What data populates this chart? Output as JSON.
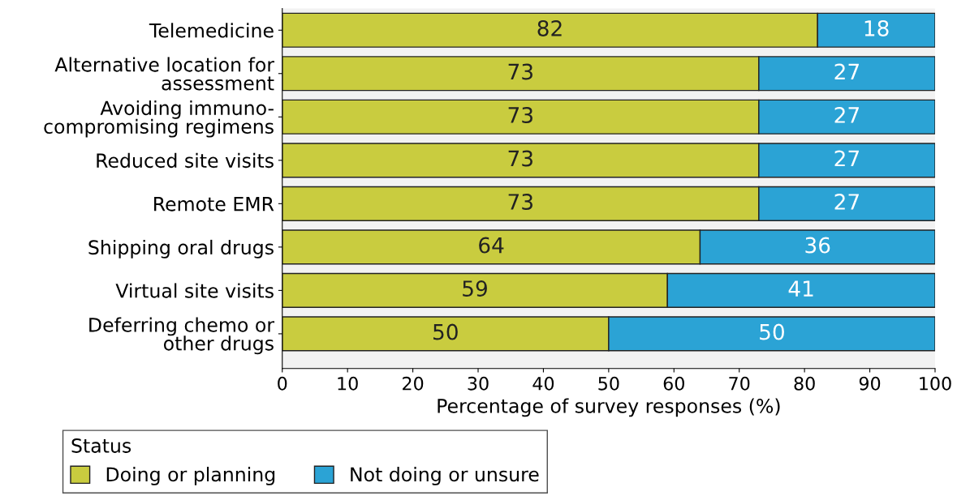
{
  "chart_data": {
    "type": "bar",
    "orientation": "horizontal",
    "stacked": true,
    "categories": [
      "Telemedicine",
      "Alternative location for\nassessment",
      "Avoiding immuno-\ncompromising regimens",
      "Reduced site visits",
      "Remote EMR",
      "Shipping oral drugs",
      "Virtual site visits",
      "Deferring chemo or\nother drugs"
    ],
    "series": [
      {
        "name": "Doing or planning",
        "color": "#c9cc3f",
        "values": [
          82,
          73,
          73,
          73,
          73,
          64,
          59,
          50
        ]
      },
      {
        "name": "Not doing or unsure",
        "color": "#2ba3d5",
        "values": [
          18,
          27,
          27,
          27,
          27,
          36,
          41,
          50
        ]
      }
    ],
    "xlim": [
      0,
      100
    ],
    "xticks": [
      0,
      10,
      20,
      30,
      40,
      50,
      60,
      70,
      80,
      90,
      100
    ],
    "xlabel": "Percentage of survey responses (%)",
    "legend_title": "Status",
    "legend": "bottom left",
    "data_labels": true,
    "grid": false
  }
}
